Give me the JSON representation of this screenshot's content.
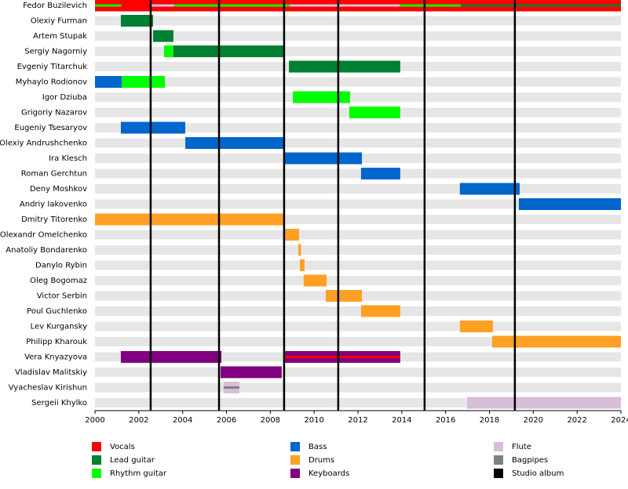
{
  "chart_data": {
    "type": "timeline",
    "xlim": [
      2000,
      2024
    ],
    "xticks": [
      2000,
      2002,
      2004,
      2006,
      2008,
      2010,
      2012,
      2014,
      2016,
      2018,
      2020,
      2022,
      2024
    ],
    "roles": [
      {
        "name": "Vocals",
        "color": "#ff0000"
      },
      {
        "name": "Lead guitar",
        "color": "#008033"
      },
      {
        "name": "Rhythm guitar",
        "color": "#00ff00"
      },
      {
        "name": "Bass",
        "color": "#0066cc"
      },
      {
        "name": "Drums",
        "color": "#ffa024"
      },
      {
        "name": "Keyboards",
        "color": "#800080"
      },
      {
        "name": "Flute",
        "color": "#d8bfd8"
      },
      {
        "name": "Bagpipes",
        "color": "#808080"
      },
      {
        "name": "Studio album",
        "color": "#000000"
      }
    ],
    "studio_albums": [
      2002.54,
      2005.66,
      2008.63,
      2011.1,
      2015.04,
      2019.16
    ],
    "members": [
      {
        "name": "Fedor Buzilevich",
        "bars": [
          {
            "role": "Vocals",
            "start": 2000,
            "end": 2024
          },
          {
            "role": "Rhythm guitar",
            "start": 2000,
            "end": 2001.2,
            "thin": true
          },
          {
            "role": "Flute",
            "start": 2002.5,
            "end": 2003.6,
            "thin": true
          },
          {
            "role": "Rhythm guitar",
            "start": 2003.6,
            "end": 2008.9,
            "thin": true
          },
          {
            "role": "Flute",
            "start": 2008.9,
            "end": 2013.9,
            "thin": true
          },
          {
            "role": "Rhythm guitar",
            "start": 2013.9,
            "end": 2016.7,
            "thin": true
          },
          {
            "role": "Lead guitar",
            "start": 2016.7,
            "end": 2024,
            "thin": true
          }
        ]
      },
      {
        "name": "Olexiy Furman",
        "bars": [
          {
            "role": "Lead guitar",
            "start": 2001.18,
            "end": 2002.65
          }
        ]
      },
      {
        "name": "Artem Stupak",
        "bars": [
          {
            "role": "Lead guitar",
            "start": 2002.65,
            "end": 2003.58
          }
        ]
      },
      {
        "name": "Sergiy Nagorniy",
        "bars": [
          {
            "role": "Rhythm guitar",
            "start": 2003.15,
            "end": 2003.58
          },
          {
            "role": "Lead guitar",
            "start": 2003.58,
            "end": 2008.6
          }
        ]
      },
      {
        "name": "Evgeniy Titarchuk",
        "bars": [
          {
            "role": "Lead guitar",
            "start": 2008.85,
            "end": 2013.93
          }
        ]
      },
      {
        "name": "Myhaylo Rodionov",
        "bars": [
          {
            "role": "Bass",
            "start": 2000,
            "end": 2001.22
          },
          {
            "role": "Rhythm guitar",
            "start": 2001.22,
            "end": 2003.19
          }
        ]
      },
      {
        "name": "Igor Dziuba",
        "bars": [
          {
            "role": "Rhythm guitar",
            "start": 2009.03,
            "end": 2011.64
          }
        ]
      },
      {
        "name": "Grigoriy Nazarov",
        "bars": [
          {
            "role": "Rhythm guitar",
            "start": 2011.6,
            "end": 2013.93
          }
        ]
      },
      {
        "name": "Eugeniy Tsesaryov",
        "bars": [
          {
            "role": "Bass",
            "start": 2001.18,
            "end": 2004.12
          }
        ]
      },
      {
        "name": "Olexiy Andrushchenko",
        "bars": [
          {
            "role": "Bass",
            "start": 2004.12,
            "end": 2008.6
          }
        ]
      },
      {
        "name": "Ira Klesch",
        "bars": [
          {
            "role": "Bass",
            "start": 2008.63,
            "end": 2012.18
          }
        ]
      },
      {
        "name": "Roman Gerchtun",
        "bars": [
          {
            "role": "Bass",
            "start": 2012.14,
            "end": 2013.93
          }
        ]
      },
      {
        "name": "Deny Moshkov",
        "bars": [
          {
            "role": "Bass",
            "start": 2016.65,
            "end": 2019.38
          }
        ]
      },
      {
        "name": "Andriy Iakovenko",
        "bars": [
          {
            "role": "Bass",
            "start": 2019.34,
            "end": 2024
          }
        ]
      },
      {
        "name": "Dmitry Titorenko",
        "bars": [
          {
            "role": "Drums",
            "start": 2000,
            "end": 2008.6
          }
        ]
      },
      {
        "name": "Olexandr Omelchenko",
        "bars": [
          {
            "role": "Drums",
            "start": 2008.6,
            "end": 2009.31
          }
        ]
      },
      {
        "name": "Anatoliy Bondarenko",
        "bars": [
          {
            "role": "Drums",
            "start": 2009.28,
            "end": 2009.4
          }
        ]
      },
      {
        "name": "Danylo Rybin",
        "bars": [
          {
            "role": "Drums",
            "start": 2009.35,
            "end": 2009.56
          }
        ]
      },
      {
        "name": "Oleg Bogomaz",
        "bars": [
          {
            "role": "Drums",
            "start": 2009.52,
            "end": 2010.57
          }
        ]
      },
      {
        "name": "Victor Serbin",
        "bars": [
          {
            "role": "Drums",
            "start": 2010.53,
            "end": 2012.18
          }
        ]
      },
      {
        "name": "Poul Guchlenko",
        "bars": [
          {
            "role": "Drums",
            "start": 2012.14,
            "end": 2013.93
          }
        ]
      },
      {
        "name": "Lev Kurgansky",
        "bars": [
          {
            "role": "Drums",
            "start": 2016.65,
            "end": 2018.16
          }
        ]
      },
      {
        "name": "Philipp Kharouk",
        "bars": [
          {
            "role": "Drums",
            "start": 2018.12,
            "end": 2024
          }
        ]
      },
      {
        "name": "Vera Knyazyova",
        "bars": [
          {
            "role": "Keyboards",
            "start": 2001.18,
            "end": 2005.77
          },
          {
            "role": "Keyboards",
            "start": 2008.6,
            "end": 2013.93
          },
          {
            "role": "Vocals",
            "start": 2008.6,
            "end": 2013.93,
            "thin": true
          }
        ]
      },
      {
        "name": "Vladislav Malitskiy",
        "bars": [
          {
            "role": "Keyboards",
            "start": 2005.73,
            "end": 2008.52
          }
        ]
      },
      {
        "name": "Vyacheslav Kirishun",
        "bars": [
          {
            "role": "Flute",
            "start": 2005.87,
            "end": 2006.59
          },
          {
            "role": "Bagpipes",
            "start": 2005.87,
            "end": 2006.59,
            "thin": true
          }
        ]
      },
      {
        "name": "Sergeii Khylko",
        "bars": [
          {
            "role": "Flute",
            "start": 2016.98,
            "end": 2024
          }
        ]
      }
    ]
  }
}
